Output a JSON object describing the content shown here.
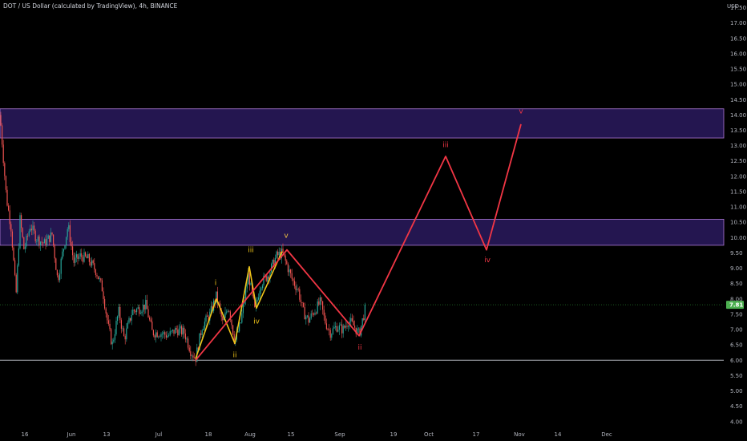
{
  "header": {
    "title": "DOT / US Dollar (calculated by TradingView), 4h, BINANCE",
    "currency": "USD"
  },
  "colors": {
    "background": "#000000",
    "zone_fill": "#2a1a5e",
    "zone_border": "#b07ad6",
    "bull_candle": "#26a69a",
    "bear_candle": "#ef5350",
    "projection": "#f23645",
    "past_wave": "#f0c419",
    "past_label": "#ffffff",
    "support": "#b2b5be",
    "current_price_line": "#1b5e20",
    "current_price_tag": "#4caf50"
  },
  "chart_data": {
    "type": "candlestick",
    "symbol": "DOT / US Dollar",
    "interval": "4h",
    "exchange": "BINANCE",
    "ylim": [
      3.6,
      18.0
    ],
    "y_ticks": [
      "4.00",
      "4.50",
      "5.00",
      "5.50",
      "6.00",
      "6.50",
      "7.00",
      "7.50",
      "8.00",
      "8.50",
      "9.00",
      "9.50",
      "10.00",
      "10.50",
      "11.00",
      "11.50",
      "12.00",
      "12.50",
      "13.00",
      "13.50",
      "14.00",
      "14.50",
      "15.00",
      "15.50",
      "16.00",
      "16.50",
      "17.00",
      "17.50",
      "18.00"
    ],
    "x_ticks": [
      "16",
      "Jun",
      "13",
      "Jul",
      "18",
      "Aug",
      "15",
      "Sep",
      "19",
      "Oct",
      "17",
      "Nov",
      "14",
      "Dec"
    ],
    "current_price": "7.81",
    "zones": [
      {
        "low": 13.25,
        "high": 14.2
      },
      {
        "low": 9.75,
        "high": 10.6
      }
    ],
    "support_level": 6.0,
    "price_path": [
      [
        0,
        14.0
      ],
      [
        8,
        11.3
      ],
      [
        14,
        10.3
      ],
      [
        20,
        8.1
      ],
      [
        25,
        10.6
      ],
      [
        30,
        9.6
      ],
      [
        38,
        10.4
      ],
      [
        45,
        10.0
      ],
      [
        55,
        9.8
      ],
      [
        65,
        10.1
      ],
      [
        72,
        8.6
      ],
      [
        78,
        9.5
      ],
      [
        85,
        10.4
      ],
      [
        92,
        9.2
      ],
      [
        100,
        9.4
      ],
      [
        110,
        9.3
      ],
      [
        120,
        8.9
      ],
      [
        128,
        8.3
      ],
      [
        135,
        7.1
      ],
      [
        140,
        6.5
      ],
      [
        148,
        7.6
      ],
      [
        155,
        6.7
      ],
      [
        165,
        7.6
      ],
      [
        175,
        7.7
      ],
      [
        182,
        7.8
      ],
      [
        190,
        6.9
      ],
      [
        200,
        6.9
      ],
      [
        210,
        6.8
      ],
      [
        220,
        7.0
      ],
      [
        230,
        6.9
      ],
      [
        238,
        6.3
      ],
      [
        244,
        6.05
      ],
      [
        252,
        7.1
      ],
      [
        262,
        7.5
      ],
      [
        270,
        8.1
      ],
      [
        278,
        7.2
      ],
      [
        285,
        7.8
      ],
      [
        293,
        6.6
      ],
      [
        300,
        7.2
      ],
      [
        310,
        8.8
      ],
      [
        318,
        7.6
      ],
      [
        325,
        8.5
      ],
      [
        335,
        8.8
      ],
      [
        345,
        9.4
      ],
      [
        352,
        9.5
      ],
      [
        358,
        9.1
      ],
      [
        365,
        8.6
      ],
      [
        372,
        8.3
      ],
      [
        378,
        7.6
      ],
      [
        385,
        7.3
      ],
      [
        392,
        7.6
      ],
      [
        400,
        7.9
      ],
      [
        405,
        7.3
      ],
      [
        412,
        6.9
      ],
      [
        420,
        7.1
      ],
      [
        428,
        7.0
      ],
      [
        435,
        7.3
      ],
      [
        442,
        7.1
      ],
      [
        448,
        6.85
      ],
      [
        455,
        7.6
      ],
      [
        458,
        7.9
      ]
    ],
    "projection": [
      [
        244,
        6.0
      ],
      [
        358,
        9.6
      ],
      [
        448,
        6.8
      ],
      [
        556,
        12.65
      ],
      [
        607,
        9.6
      ],
      [
        650,
        13.7
      ]
    ],
    "projection_labels": [
      "ii",
      "iii",
      "iv",
      "v"
    ],
    "subwave_path": [
      [
        244,
        6.05
      ],
      [
        270,
        8.0
      ],
      [
        293,
        6.55
      ],
      [
        311,
        9.05
      ],
      [
        320,
        7.7
      ],
      [
        352,
        9.55
      ]
    ],
    "subwave_labels": [
      "i",
      "ii",
      "iii",
      "iv",
      "v"
    ]
  }
}
